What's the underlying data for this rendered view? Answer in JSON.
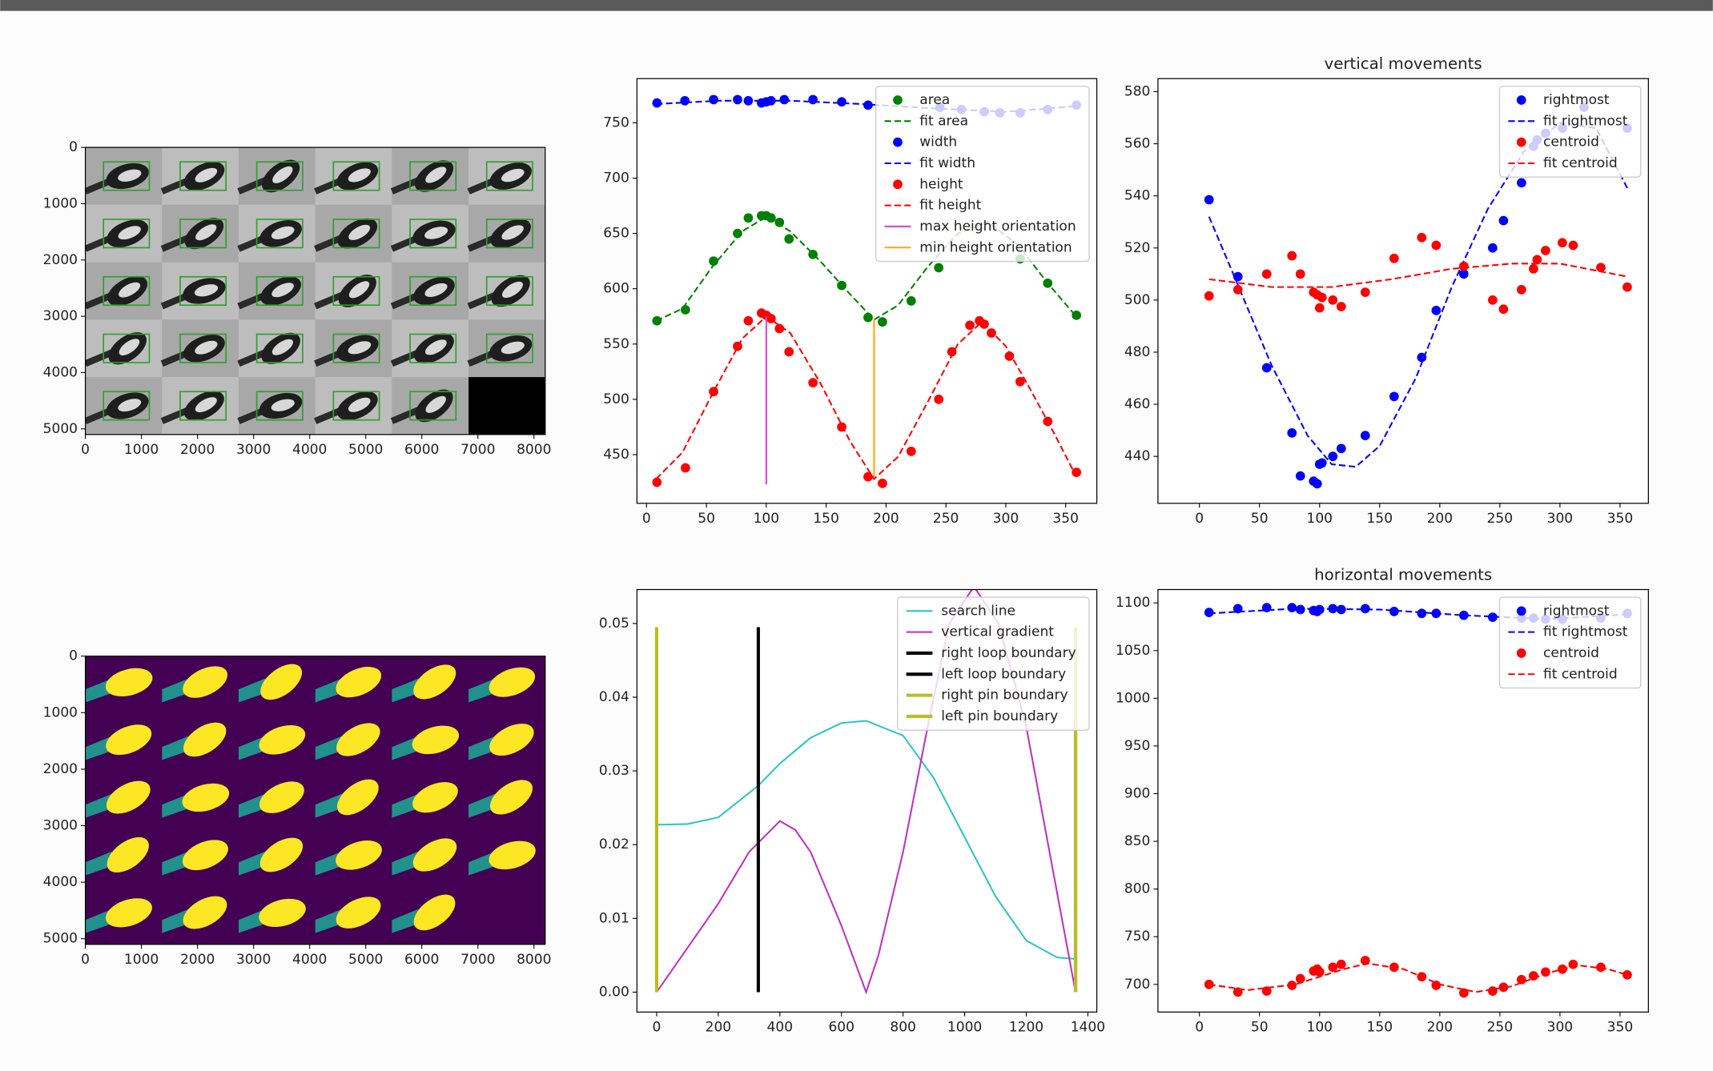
{
  "chart_data": [
    {
      "type": "image",
      "colormap": "gray",
      "xlim": [
        0,
        8200
      ],
      "ylim": [
        5100,
        0
      ],
      "xticks": [
        0,
        1000,
        2000,
        3000,
        4000,
        5000,
        6000,
        7000,
        8000
      ],
      "yticks": [
        0,
        1000,
        2000,
        3000,
        4000,
        5000
      ]
    },
    {
      "type": "line",
      "legend": "upper right",
      "xlim": [
        -8,
        376
      ],
      "ylim": [
        406,
        790
      ],
      "xticks": [
        0,
        50,
        100,
        150,
        200,
        250,
        300,
        350
      ],
      "yticks": [
        450,
        500,
        550,
        600,
        650,
        700,
        750
      ],
      "series": [
        {
          "name": "area",
          "color": "#008000",
          "style": "markers",
          "x": [
            8.7,
            32.5,
            56,
            76,
            85,
            96,
            100,
            104,
            111,
            119,
            139,
            163,
            185,
            197,
            221,
            244,
            312,
            335,
            359
          ],
          "values": [
            571,
            581,
            625,
            650,
            664,
            666,
            666,
            664,
            660,
            645,
            631,
            603,
            574,
            570,
            589,
            619,
            627,
            605,
            576
          ]
        },
        {
          "name": "fit area",
          "color": "#008000",
          "style": "dashed",
          "x": [
            8,
            30,
            55,
            80,
            100,
            120,
            145,
            170,
            190,
            210,
            235,
            260,
            285,
            310,
            335,
            358
          ],
          "values": [
            571,
            582,
            620,
            652,
            665,
            652,
            625,
            595,
            572,
            585,
            620,
            650,
            660,
            640,
            605,
            576
          ]
        },
        {
          "name": "width",
          "color": "#0000ff",
          "style": "markers",
          "x": [
            8.7,
            32,
            56,
            76,
            85,
            96,
            100,
            104,
            115,
            139,
            163,
            185,
            245,
            263,
            282,
            295,
            312,
            335,
            359
          ],
          "values": [
            768,
            770,
            771,
            771,
            770,
            768,
            769,
            770,
            771,
            771,
            769,
            766,
            764,
            762,
            760,
            759,
            759,
            762,
            766
          ]
        },
        {
          "name": "fit width",
          "color": "#0000ff",
          "style": "dashed",
          "x": [
            8,
            60,
            120,
            180,
            240,
            300,
            358
          ],
          "values": [
            767,
            770,
            770,
            767,
            763,
            760,
            765
          ]
        },
        {
          "name": "height",
          "color": "#ff0000",
          "style": "markers",
          "x": [
            8.7,
            32.5,
            56,
            76,
            85,
            96,
            100,
            104,
            111,
            119,
            139,
            163,
            185,
            197,
            221,
            244,
            255,
            270,
            278,
            282,
            288,
            303,
            312,
            335,
            359
          ],
          "values": [
            425,
            438,
            507,
            548,
            571,
            578,
            576,
            573,
            564,
            543,
            515,
            475,
            430,
            424,
            453,
            500,
            543,
            567,
            571,
            568,
            560,
            539,
            516,
            480,
            434
          ]
        },
        {
          "name": "fit height",
          "color": "#ff0000",
          "style": "dashed",
          "x": [
            8,
            30,
            55,
            80,
            100,
            120,
            145,
            170,
            190,
            210,
            235,
            260,
            280,
            300,
            320,
            340,
            358
          ],
          "values": [
            428,
            452,
            505,
            555,
            575,
            560,
            515,
            462,
            428,
            448,
            498,
            550,
            570,
            548,
            510,
            470,
            432
          ]
        },
        {
          "name": "max height orientation",
          "color": "#e040e0",
          "style": "solid",
          "x": [
            100,
            100
          ],
          "values": [
            423,
            575
          ]
        },
        {
          "name": "min height orientation",
          "color": "#ffa500",
          "style": "solid",
          "x": [
            190,
            190
          ],
          "values": [
            430,
            573
          ]
        }
      ]
    },
    {
      "type": "line",
      "legend": "upper right",
      "title": "vertical movements",
      "xlim": [
        -34.5,
        373.6
      ],
      "ylim": [
        422,
        585
      ],
      "xticks": [
        0,
        50,
        100,
        150,
        200,
        250,
        300,
        350
      ],
      "yticks": [
        440,
        460,
        480,
        500,
        520,
        540,
        560,
        580
      ],
      "series": [
        {
          "name": "rightmost",
          "color": "#0000ff",
          "style": "markers",
          "x": [
            8,
            32,
            56,
            77,
            84,
            95,
            98,
            100,
            102,
            111,
            118,
            138,
            162,
            185,
            197,
            220,
            244,
            253,
            268,
            278,
            281,
            288,
            302,
            320,
            356
          ],
          "values": [
            538.5,
            509,
            474,
            449,
            432.5,
            430.5,
            429.5,
            437,
            437.5,
            440,
            443,
            448,
            463,
            478,
            496,
            510,
            520,
            530.5,
            545,
            559,
            561.5,
            564,
            566,
            574,
            566
          ]
        },
        {
          "name": "fit rightmost",
          "color": "#0000ff",
          "style": "dashed",
          "x": [
            8,
            30,
            60,
            90,
            110,
            130,
            150,
            180,
            210,
            240,
            270,
            300,
            330,
            356
          ],
          "values": [
            532,
            508,
            475,
            448,
            437,
            436,
            444,
            470,
            505,
            535,
            557,
            568,
            566,
            543
          ]
        },
        {
          "name": "centroid",
          "color": "#ff0000",
          "style": "markers",
          "x": [
            8,
            32,
            56,
            77,
            84,
            95,
            98,
            100,
            102,
            111,
            118,
            138,
            162,
            185,
            197,
            220,
            244,
            253,
            268,
            278,
            281,
            288,
            302,
            311,
            334,
            356
          ],
          "values": [
            501.6,
            504,
            510,
            517,
            510,
            503,
            502,
            497,
            501,
            500,
            497.5,
            503,
            516,
            524,
            521,
            513,
            500,
            496.5,
            504,
            512,
            515.5,
            519,
            522,
            521,
            512.5,
            505
          ]
        },
        {
          "name": "fit centroid",
          "color": "#ff0000",
          "style": "dashed",
          "x": [
            8,
            60,
            110,
            160,
            210,
            260,
            300,
            356
          ],
          "values": [
            508,
            505,
            505,
            508,
            512,
            514,
            514,
            509
          ]
        }
      ]
    },
    {
      "type": "image",
      "colormap": "viridis",
      "xlim": [
        0,
        8200
      ],
      "ylim": [
        5100,
        0
      ],
      "xticks": [
        0,
        1000,
        2000,
        3000,
        4000,
        5000,
        6000,
        7000,
        8000
      ],
      "yticks": [
        0,
        1000,
        2000,
        3000,
        4000,
        5000
      ]
    },
    {
      "type": "line",
      "legend": "upper right",
      "xlim": [
        -64,
        1429
      ],
      "ylim": [
        -0.0027,
        0.0546
      ],
      "xticks": [
        0,
        200,
        400,
        600,
        800,
        1000,
        1200,
        1400
      ],
      "yticks": [
        {
          "value": 0,
          "label": "0.00"
        },
        0.01,
        0.02,
        0.03,
        0.04,
        0.05
      ],
      "series": [
        {
          "name": "search line",
          "color": "#2ec4c4",
          "style": "solid",
          "x": [
            0,
            100,
            200,
            330,
            400,
            500,
            600,
            680,
            800,
            900,
            1000,
            1100,
            1200,
            1300,
            1360
          ],
          "values": [
            0.0227,
            0.0228,
            0.0237,
            0.028,
            0.031,
            0.0345,
            0.0365,
            0.0368,
            0.0348,
            0.029,
            0.021,
            0.013,
            0.007,
            0.0047,
            0.0045
          ]
        },
        {
          "name": "vertical gradient",
          "color": "#c030c0",
          "style": "solid",
          "x": [
            0,
            100,
            200,
            300,
            400,
            450,
            500,
            600,
            680,
            720,
            800,
            880,
            950,
            1030,
            1110,
            1200,
            1280,
            1360
          ],
          "values": [
            0,
            0.006,
            0.012,
            0.019,
            0.0232,
            0.022,
            0.019,
            0.009,
            0,
            0.005,
            0.019,
            0.036,
            0.05,
            0.055,
            0.05,
            0.036,
            0.018,
            0
          ]
        },
        {
          "name": "right loop boundary",
          "color": "#000000",
          "style": "solid",
          "linewidth": 3,
          "x": [
            330,
            330
          ],
          "values": [
            0,
            0.0495
          ]
        },
        {
          "name": "left loop boundary",
          "color": "#000000",
          "style": "solid",
          "linewidth": 3,
          "x": [
            1360,
            1360
          ],
          "values": [
            0,
            0.0495
          ]
        },
        {
          "name": "right pin boundary",
          "color": "#bcbd22",
          "style": "solid",
          "linewidth": 3,
          "x": [
            0,
            0
          ],
          "values": [
            0,
            0.0495
          ]
        },
        {
          "name": "left pin boundary",
          "color": "#bcbd22",
          "style": "solid",
          "linewidth": 3,
          "x": [
            1360,
            1360
          ],
          "values": [
            0,
            0.0495
          ]
        }
      ]
    },
    {
      "type": "line",
      "legend": "upper right",
      "title": "horizontal movements",
      "xlim": [
        -34.5,
        373.6
      ],
      "ylim": [
        671,
        1114
      ],
      "xticks": [
        0,
        50,
        100,
        150,
        200,
        250,
        300,
        350
      ],
      "yticks": [
        700,
        750,
        800,
        850,
        900,
        950,
        1000,
        1050,
        1100
      ],
      "series": [
        {
          "name": "rightmost",
          "color": "#0000ff",
          "style": "markers",
          "x": [
            8,
            32,
            56,
            77,
            84,
            95,
            98,
            100,
            111,
            118,
            138,
            162,
            185,
            197,
            220,
            244,
            268,
            278,
            288,
            302,
            334,
            356
          ],
          "values": [
            1090,
            1094,
            1095,
            1095,
            1093,
            1092,
            1091,
            1093,
            1094,
            1093,
            1094,
            1091,
            1089,
            1089,
            1087,
            1085,
            1084,
            1084,
            1083,
            1083,
            1084,
            1089
          ]
        },
        {
          "name": "fit rightmost",
          "color": "#0000ff",
          "style": "dashed",
          "x": [
            8,
            80,
            150,
            220,
            290,
            356
          ],
          "values": [
            1089,
            1094,
            1093,
            1087,
            1083,
            1088
          ]
        },
        {
          "name": "centroid",
          "color": "#ff0000",
          "style": "markers",
          "x": [
            8,
            32,
            56,
            77,
            84,
            95,
            98,
            100,
            111,
            118,
            138,
            162,
            185,
            197,
            220,
            244,
            253,
            268,
            278,
            288,
            302,
            311,
            334,
            356
          ],
          "values": [
            700,
            692,
            693,
            699,
            706,
            714,
            716,
            713,
            718,
            721,
            725,
            718,
            708,
            699,
            691,
            693,
            697,
            705,
            709,
            713,
            716,
            721,
            718,
            710
          ]
        },
        {
          "name": "fit centroid",
          "color": "#ff0000",
          "style": "dashed",
          "x": [
            8,
            40,
            80,
            120,
            140,
            170,
            200,
            230,
            260,
            290,
            315,
            340,
            356
          ],
          "values": [
            700,
            694,
            700,
            716,
            722,
            716,
            700,
            692,
            698,
            712,
            720,
            716,
            710
          ]
        }
      ]
    }
  ]
}
